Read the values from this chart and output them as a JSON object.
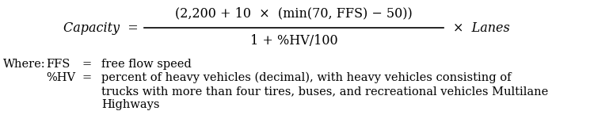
{
  "background_color": "#ffffff",
  "fig_width": 7.5,
  "fig_height": 1.69,
  "dpi": 100,
  "text_color": "#000000",
  "font_size_eq": 11.5,
  "font_size_def": 10.5,
  "eq_capacity": "Capacity",
  "eq_equals": "=",
  "eq_numerator": "(2,200 + 10  ×  (min(70, FFS) − 50))",
  "eq_denominator": "1 + %HV/100",
  "eq_times_lanes": "×  Lanes",
  "where_label": "Where:",
  "ffs_label": "FFS",
  "ffs_eq": "=",
  "ffs_def": "free flow speed",
  "hv_label": "%HV",
  "hv_eq": "=",
  "hv_def1": "percent of heavy vehicles (decimal), with heavy vehicles consisting of",
  "hv_def2": "trucks with more than four tires, buses, and recreational vehicles Multilane",
  "hv_def3": "Highways"
}
